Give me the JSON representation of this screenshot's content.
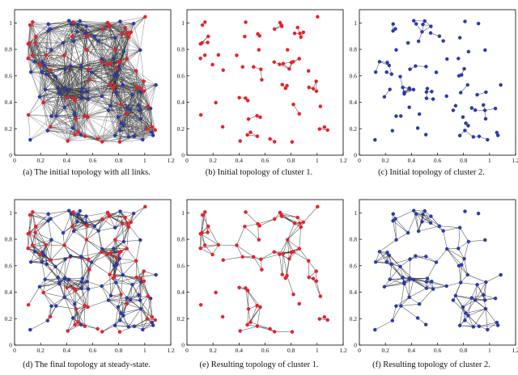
{
  "chart_data": [
    {
      "id": "a",
      "type": "scatter",
      "caption": "(a) The initial topology with all links.",
      "node_colors": [
        "red",
        "blue"
      ],
      "links": "dense",
      "link_color": "#333333",
      "xlim": [
        0,
        1.2
      ],
      "ylim": [
        0,
        1.1
      ],
      "xticks": [
        "0",
        "0.2",
        "0.4",
        "0.6",
        "0.8",
        "1",
        "1.2"
      ],
      "yticks": [
        "0",
        "0.2",
        "0.4",
        "0.6",
        "0.8",
        "1"
      ]
    },
    {
      "id": "b",
      "type": "scatter",
      "caption": "(b) Initial topology of cluster 1.",
      "node_colors": [
        "red"
      ],
      "links": "sparse",
      "link_color": "#333333",
      "xlim": [
        0,
        1.2
      ],
      "ylim": [
        0,
        1.1
      ],
      "xticks": [
        "0",
        "0.2",
        "0.4",
        "0.6",
        "0.8",
        "1",
        "1.2"
      ],
      "yticks": [
        "0",
        "0.2",
        "0.4",
        "0.6",
        "0.8",
        "1"
      ]
    },
    {
      "id": "c",
      "type": "scatter",
      "caption": "(c) Initial topology of cluster 2.",
      "node_colors": [
        "blue"
      ],
      "links": "sparse",
      "link_color": "#333333",
      "xlim": [
        0,
        1.2
      ],
      "ylim": [
        0,
        1.1
      ],
      "xticks": [
        "0",
        "0.2",
        "0.4",
        "0.6",
        "0.8",
        "1",
        "1.2"
      ],
      "yticks": [
        "0",
        "0.2",
        "0.4",
        "0.6",
        "0.8",
        "1"
      ]
    },
    {
      "id": "d",
      "type": "scatter",
      "caption": "(d) The final topology at steady-state.",
      "node_colors": [
        "red",
        "blue"
      ],
      "links": "medium",
      "link_color": "#333333",
      "xlim": [
        0,
        1.2
      ],
      "ylim": [
        0,
        1.1
      ],
      "xticks": [
        "0",
        "0.2",
        "0.4",
        "0.6",
        "0.8",
        "1",
        "1.2"
      ],
      "yticks": [
        "0",
        "0.2",
        "0.4",
        "0.6",
        "0.8",
        "1"
      ]
    },
    {
      "id": "e",
      "type": "scatter",
      "caption": "(e) Resulting topology of cluster 1.",
      "node_colors": [
        "red"
      ],
      "links": "medium",
      "link_color": "#333333",
      "xlim": [
        0,
        1.2
      ],
      "ylim": [
        0,
        1.1
      ],
      "xticks": [
        "0",
        "0.2",
        "0.4",
        "0.6",
        "0.8",
        "1",
        "1.2"
      ],
      "yticks": [
        "0",
        "0.2",
        "0.4",
        "0.6",
        "0.8",
        "1"
      ]
    },
    {
      "id": "f",
      "type": "scatter",
      "caption": "(f) Resulting topology of cluster 2.",
      "node_colors": [
        "blue"
      ],
      "links": "medium",
      "link_color": "#333333",
      "xlim": [
        0,
        1.2
      ],
      "ylim": [
        0,
        1.1
      ],
      "xticks": [
        "0",
        "0.2",
        "0.4",
        "0.6",
        "0.8",
        "1",
        "1.2"
      ],
      "yticks": [
        "0",
        "0.2",
        "0.4",
        "0.6",
        "0.8",
        "1"
      ]
    }
  ],
  "colors": {
    "red": "#e8202a",
    "blue": "#2a3aa8",
    "link": "#333333",
    "axis": "#000000"
  }
}
